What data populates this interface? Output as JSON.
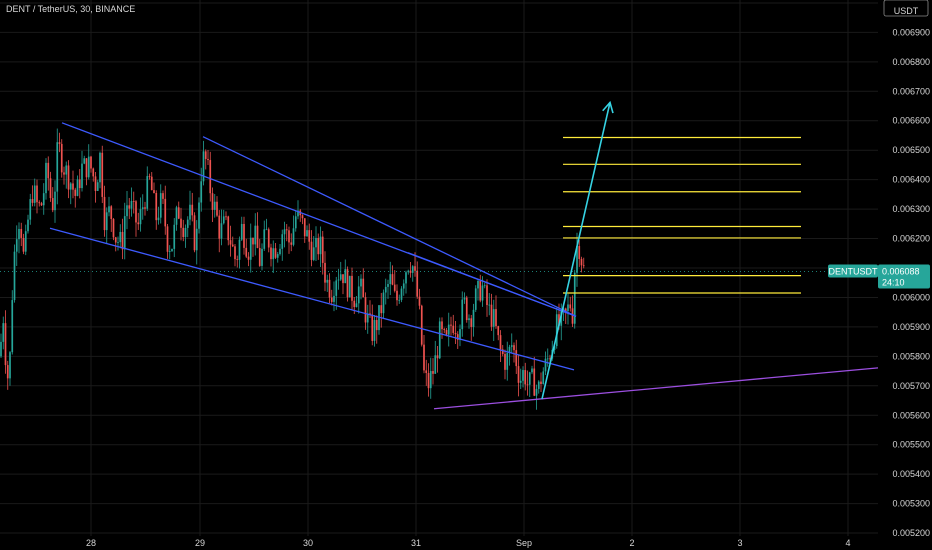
{
  "header": {
    "title": "DENT / TetherUS, 30, BINANCE"
  },
  "colors": {
    "background": "#000000",
    "up": "#26a69a",
    "down": "#ef5350",
    "channel": "#3d5afe",
    "fib": "#ffeb3b",
    "arrow": "#36d3e3",
    "support": "#9c4fe0",
    "tag_bg": "#26a69a",
    "grid": "#1a1a1a"
  },
  "chart_data": {
    "type": "candlestick",
    "symbol": "DENTUSDT",
    "last_price": "0.006088",
    "countdown": "24:10",
    "currency_label": "USDT",
    "ylim": [
      0.00519,
      0.00701
    ],
    "x_ticks": [
      "28",
      "29",
      "30",
      "31",
      "Sep",
      "2",
      "3",
      "4"
    ],
    "y_ticks": [
      "0.005200",
      "0.005300",
      "0.005400",
      "0.005500",
      "0.005600",
      "0.005700",
      "0.005800",
      "0.005900",
      "0.006000",
      "0.006100",
      "0.006200",
      "0.006300",
      "0.006400",
      "0.006500",
      "0.006600",
      "0.006700",
      "0.006800",
      "0.006900",
      "0.007000"
    ],
    "y_values": [
      0.0052,
      0.0053,
      0.0054,
      0.0055,
      0.0056,
      0.0057,
      0.0058,
      0.0059,
      0.006,
      0.0061,
      0.0062,
      0.0063,
      0.0064,
      0.0065,
      0.0066,
      0.0067,
      0.0068,
      0.0069,
      0.007
    ],
    "price_path": [
      [
        0,
        0.0058
      ],
      [
        3,
        0.00595
      ],
      [
        6,
        0.00578
      ],
      [
        9,
        0.0057
      ],
      [
        12,
        0.006
      ],
      [
        15,
        0.00618
      ],
      [
        18,
        0.00628
      ],
      [
        21,
        0.00624
      ],
      [
        24,
        0.00612
      ],
      [
        28,
        0.00626
      ],
      [
        33,
        0.00637
      ],
      [
        38,
        0.0063
      ],
      [
        42,
        0.00632
      ],
      [
        47,
        0.00644
      ],
      [
        52,
        0.0063
      ],
      [
        55,
        0.00638
      ],
      [
        58,
        0.00652
      ],
      [
        63,
        0.00645
      ],
      [
        70,
        0.0064
      ],
      [
        76,
        0.00634
      ],
      [
        82,
        0.00644
      ],
      [
        90,
        0.00645
      ],
      [
        96,
        0.00638
      ],
      [
        100,
        0.00648
      ],
      [
        105,
        0.00625
      ],
      [
        110,
        0.0063
      ],
      [
        116,
        0.0062
      ],
      [
        122,
        0.00618
      ],
      [
        126,
        0.00632
      ],
      [
        132,
        0.0063
      ],
      [
        138,
        0.00624
      ],
      [
        144,
        0.00633
      ],
      [
        150,
        0.0064
      ],
      [
        156,
        0.00627
      ],
      [
        162,
        0.00633
      ],
      [
        168,
        0.00618
      ],
      [
        172,
        0.00618
      ],
      [
        178,
        0.0063
      ],
      [
        184,
        0.00624
      ],
      [
        190,
        0.00628
      ],
      [
        196,
        0.00617
      ],
      [
        200,
        0.0064
      ],
      [
        204,
        0.00648
      ],
      [
        207,
        0.00645
      ],
      [
        211,
        0.00635
      ],
      [
        215,
        0.0063
      ],
      [
        220,
        0.00622
      ],
      [
        225,
        0.00625
      ],
      [
        230,
        0.0062
      ],
      [
        236,
        0.00612
      ],
      [
        242,
        0.00624
      ],
      [
        248,
        0.00616
      ],
      [
        254,
        0.00622
      ],
      [
        260,
        0.00612
      ],
      [
        266,
        0.00622
      ],
      [
        272,
        0.00616
      ],
      [
        278,
        0.00618
      ],
      [
        284,
        0.00624
      ],
      [
        290,
        0.00618
      ],
      [
        296,
        0.00628
      ],
      [
        302,
        0.00625
      ],
      [
        308,
        0.0062
      ],
      [
        314,
        0.00615
      ],
      [
        320,
        0.00618
      ],
      [
        326,
        0.00606
      ],
      [
        332,
        0.00602
      ],
      [
        336,
        0.00608
      ],
      [
        342,
        0.00609
      ],
      [
        348,
        0.00604
      ],
      [
        354,
        0.006
      ],
      [
        360,
        0.00604
      ],
      [
        366,
        0.00594
      ],
      [
        372,
        0.00588
      ],
      [
        378,
        0.00592
      ],
      [
        384,
        0.006
      ],
      [
        390,
        0.00606
      ],
      [
        396,
        0.00598
      ],
      [
        402,
        0.00606
      ],
      [
        408,
        0.00612
      ],
      [
        412,
        0.00612
      ],
      [
        416,
        0.00604
      ],
      [
        420,
        0.00592
      ],
      [
        424,
        0.00574
      ],
      [
        428,
        0.0057
      ],
      [
        434,
        0.00576
      ],
      [
        440,
        0.00588
      ],
      [
        446,
        0.00584
      ],
      [
        452,
        0.00592
      ],
      [
        458,
        0.0059
      ],
      [
        464,
        0.00598
      ],
      [
        470,
        0.00593
      ],
      [
        476,
        0.006
      ],
      [
        482,
        0.00604
      ],
      [
        488,
        0.00596
      ],
      [
        494,
        0.00592
      ],
      [
        500,
        0.00582
      ],
      [
        506,
        0.00578
      ],
      [
        512,
        0.00584
      ],
      [
        516,
        0.00579
      ],
      [
        520,
        0.00572
      ],
      [
        524,
        0.00575
      ],
      [
        528,
        0.0057
      ],
      [
        533,
        0.00572
      ],
      [
        538,
        0.00568
      ],
      [
        542,
        0.00574
      ],
      [
        547,
        0.00578
      ],
      [
        552,
        0.00584
      ],
      [
        556,
        0.0059
      ],
      [
        561,
        0.00591
      ],
      [
        566,
        0.00594
      ],
      [
        570,
        0.00598
      ],
      [
        573,
        0.00594
      ],
      [
        575,
        0.00612
      ],
      [
        578,
        0.0062
      ],
      [
        581,
        0.00614
      ],
      [
        584,
        0.00609
      ]
    ],
    "drawings": {
      "channel_upper": [
        [
          62,
          0.006593
        ],
        [
          576,
          0.005936
        ]
      ],
      "channel_lower": [
        [
          50,
          0.006235
        ],
        [
          574,
          0.005754
        ]
      ],
      "wedge_upper": [
        [
          203,
          0.006546
        ],
        [
          576,
          0.005936
        ]
      ],
      "wedge_lower": [
        [
          408,
          0.006152
        ],
        [
          576,
          0.005936
        ]
      ],
      "support": [
        [
          434,
          0.005622
        ],
        [
          878,
          0.005761
        ]
      ],
      "arrow": [
        [
          542,
          0.005655
        ],
        [
          610,
          0.006662
        ]
      ],
      "fib_levels": [
        0.006543,
        0.006452,
        0.006359,
        0.006241,
        0.006202,
        0.006074,
        0.006015
      ],
      "fib_x": [
        563,
        801
      ]
    }
  }
}
